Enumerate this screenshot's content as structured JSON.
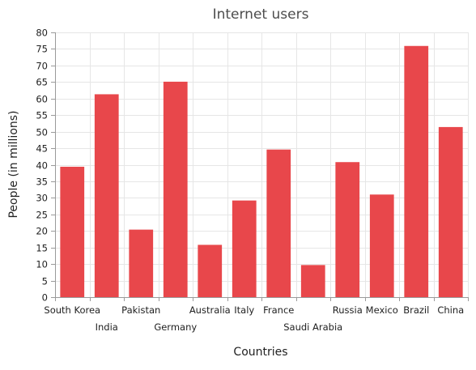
{
  "chart_data": {
    "type": "bar",
    "title": "Internet users",
    "xlabel": "Countries",
    "ylabel": "People (in millions)",
    "ylim": [
      0,
      80
    ],
    "y_interval": 5,
    "grid": true,
    "categories": [
      "South Korea",
      "India",
      "Pakistan",
      "Germany",
      "Australia",
      "Italy",
      "France",
      "Saudi Arabia",
      "Russia",
      "Mexico",
      "Brazil",
      "China"
    ],
    "values": [
      39.4,
      61.3,
      20.4,
      65.1,
      15.8,
      29.2,
      44.6,
      9.7,
      40.8,
      31.0,
      75.9,
      51.4
    ],
    "bar_color": "#e8474b",
    "grid_color": "#e6e6e6",
    "axis_color": "#9a9a9a"
  }
}
